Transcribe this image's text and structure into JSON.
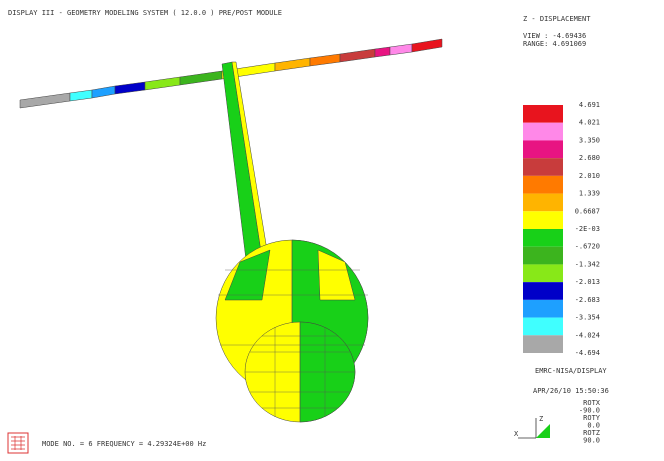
{
  "header": {
    "title": "DISPLAY III - GEOMETRY MODELING SYSTEM ( 12.0.0 )  PRE/POST MODULE"
  },
  "legend": {
    "title": "Z - DISPLACEMENT",
    "view": "VIEW : -4.69436",
    "range": "RANGE: 4.691069",
    "labels": [
      "4.691",
      "4.021",
      "3.350",
      "2.680",
      "2.010",
      "1.339",
      "0.6687",
      "-2E-03",
      "-.6720",
      "-1.342",
      "-2.013",
      "-2.683",
      "-3.354",
      "-4.024",
      "-4.694"
    ],
    "colors": [
      "#e8141e",
      "#ff88e8",
      "#e81482",
      "#c83c3c",
      "#ff7a00",
      "#ffb400",
      "#ffff00",
      "#18d018",
      "#3cb41e",
      "#88e818",
      "#0000c8",
      "#1ea0ff",
      "#40ffff",
      "#a8a8a8"
    ]
  },
  "footer": {
    "program": "EMRC-NISA/DISPLAY",
    "date": "APR/26/10 15:50:36",
    "mode": "MODE NO. =   6   FREQUENCY = 4.29324E+00 Hz"
  },
  "rotation": [
    "ROTX",
    "-90.0",
    "ROTY",
    "0.0",
    "ROTZ",
    "90.0"
  ],
  "axes": {
    "z": "Z",
    "x": "X"
  }
}
